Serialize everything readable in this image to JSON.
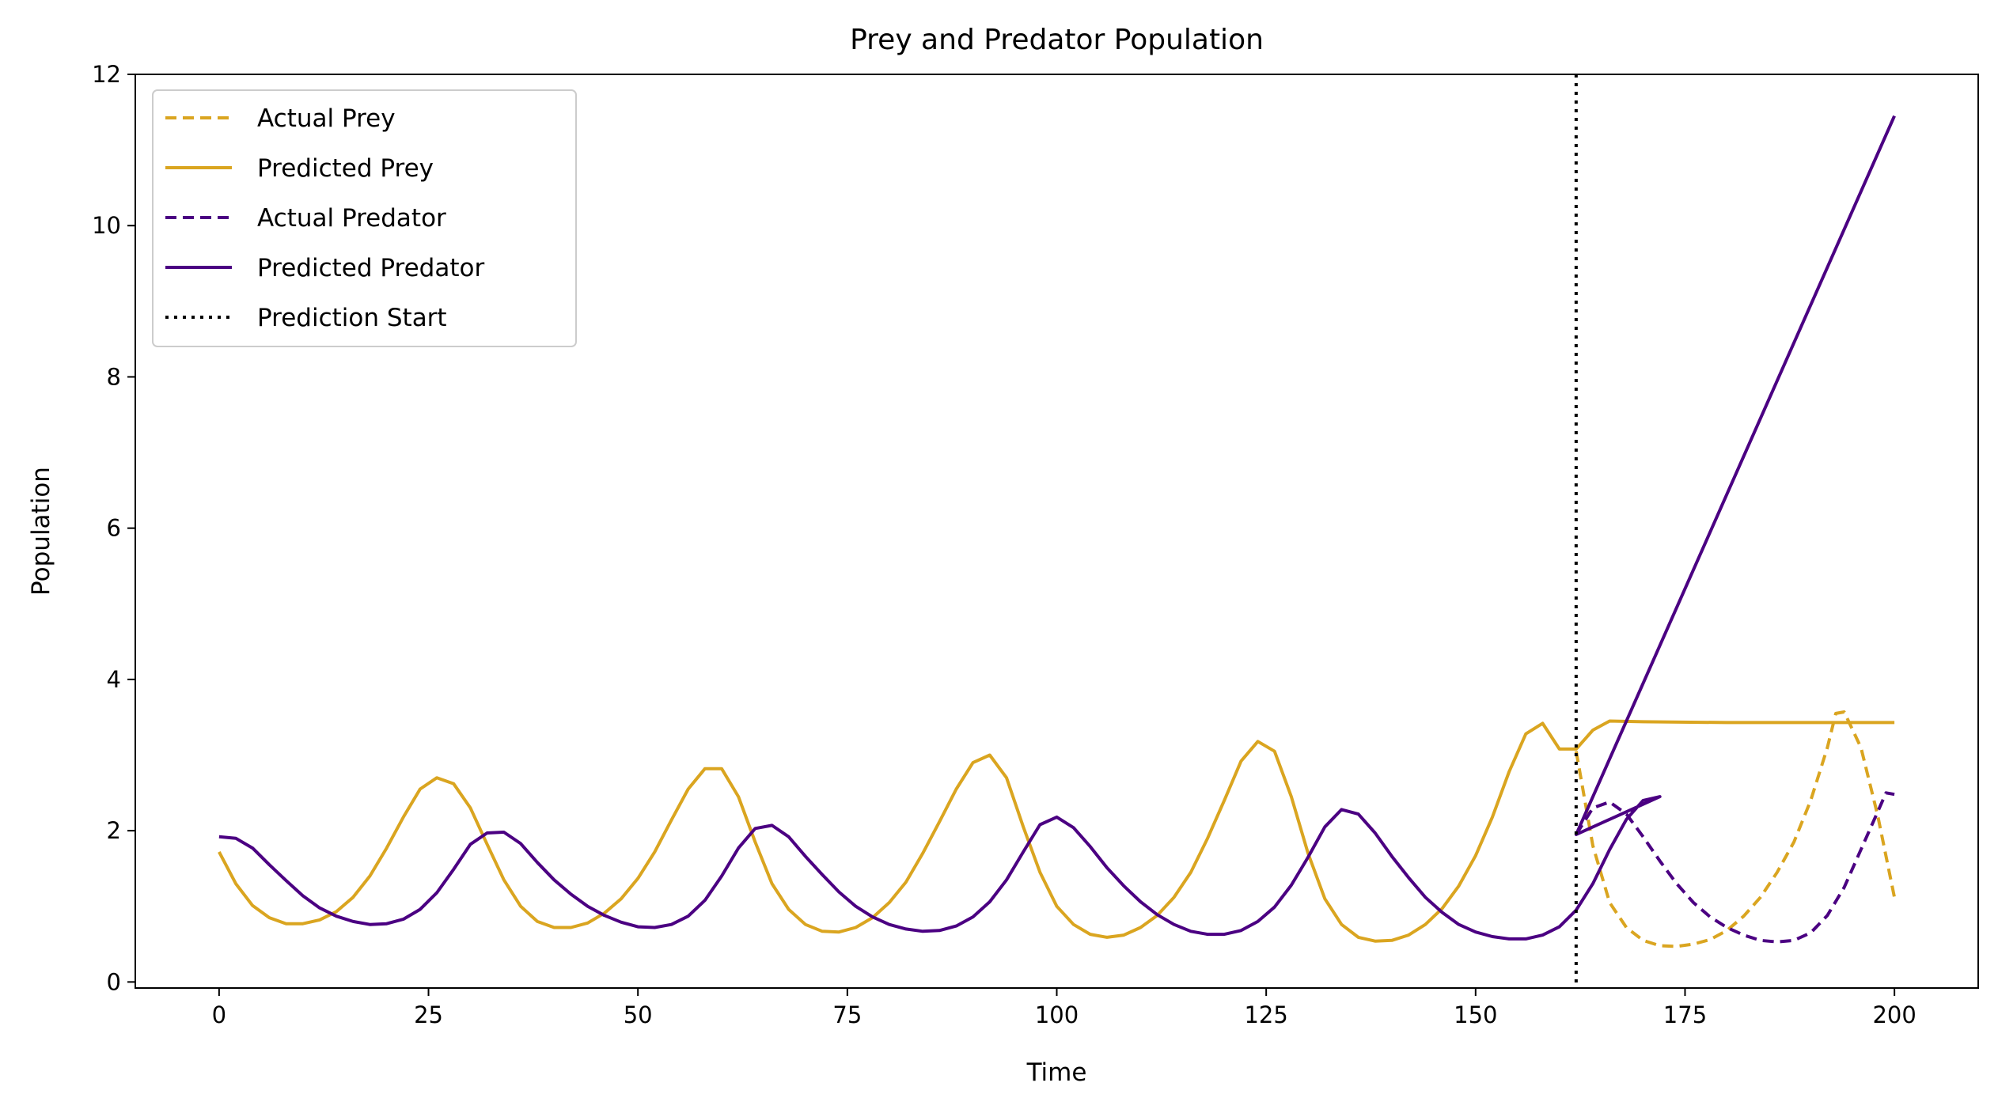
{
  "chart_data": {
    "type": "line",
    "title": "Prey and Predator Population",
    "xlabel": "Time",
    "ylabel": "Population",
    "xlim": [
      -10,
      210
    ],
    "ylim": [
      -0.08,
      12
    ],
    "xticks": [
      0,
      25,
      50,
      75,
      100,
      125,
      150,
      175,
      200
    ],
    "yticks": [
      0,
      2,
      4,
      6,
      8,
      10,
      12
    ],
    "grid": false,
    "legend_position": "top-left",
    "prediction_start": 162,
    "colors": {
      "prey": "#DAA520",
      "predator": "#4B0082",
      "prediction_start": "#000000"
    },
    "series": [
      {
        "name": "Actual Prey",
        "style": "dashed",
        "color": "#DAA520",
        "points": [
          [
            162,
            3.05
          ],
          [
            164,
            1.8
          ],
          [
            166,
            1.05
          ],
          [
            168,
            0.72
          ],
          [
            170,
            0.55
          ],
          [
            172,
            0.48
          ],
          [
            174,
            0.47
          ],
          [
            176,
            0.5
          ],
          [
            178,
            0.56
          ],
          [
            180,
            0.68
          ],
          [
            182,
            0.87
          ],
          [
            184,
            1.12
          ],
          [
            186,
            1.45
          ],
          [
            188,
            1.85
          ],
          [
            190,
            2.4
          ],
          [
            192,
            3.1
          ],
          [
            193,
            3.55
          ],
          [
            194,
            3.57
          ],
          [
            196,
            3.1
          ],
          [
            198,
            2.2
          ],
          [
            200,
            1.12
          ]
        ]
      },
      {
        "name": "Predicted Prey",
        "style": "solid",
        "color": "#DAA520",
        "points": [
          [
            0,
            1.72
          ],
          [
            2,
            1.3
          ],
          [
            4,
            1.01
          ],
          [
            6,
            0.85
          ],
          [
            8,
            0.77
          ],
          [
            10,
            0.77
          ],
          [
            12,
            0.82
          ],
          [
            14,
            0.93
          ],
          [
            16,
            1.12
          ],
          [
            18,
            1.4
          ],
          [
            20,
            1.77
          ],
          [
            22,
            2.18
          ],
          [
            24,
            2.55
          ],
          [
            26,
            2.7
          ],
          [
            28,
            2.62
          ],
          [
            30,
            2.3
          ],
          [
            32,
            1.82
          ],
          [
            34,
            1.35
          ],
          [
            36,
            1.0
          ],
          [
            38,
            0.8
          ],
          [
            40,
            0.72
          ],
          [
            42,
            0.72
          ],
          [
            44,
            0.78
          ],
          [
            46,
            0.91
          ],
          [
            48,
            1.1
          ],
          [
            50,
            1.37
          ],
          [
            52,
            1.72
          ],
          [
            54,
            2.14
          ],
          [
            56,
            2.55
          ],
          [
            58,
            2.82
          ],
          [
            60,
            2.82
          ],
          [
            62,
            2.45
          ],
          [
            64,
            1.85
          ],
          [
            66,
            1.3
          ],
          [
            68,
            0.96
          ],
          [
            70,
            0.76
          ],
          [
            72,
            0.67
          ],
          [
            74,
            0.66
          ],
          [
            76,
            0.72
          ],
          [
            78,
            0.85
          ],
          [
            80,
            1.05
          ],
          [
            82,
            1.32
          ],
          [
            84,
            1.7
          ],
          [
            86,
            2.12
          ],
          [
            88,
            2.55
          ],
          [
            90,
            2.9
          ],
          [
            92,
            3.0
          ],
          [
            94,
            2.7
          ],
          [
            96,
            2.05
          ],
          [
            98,
            1.45
          ],
          [
            100,
            1.0
          ],
          [
            102,
            0.76
          ],
          [
            104,
            0.63
          ],
          [
            106,
            0.59
          ],
          [
            108,
            0.62
          ],
          [
            110,
            0.72
          ],
          [
            112,
            0.88
          ],
          [
            114,
            1.12
          ],
          [
            116,
            1.45
          ],
          [
            118,
            1.9
          ],
          [
            120,
            2.4
          ],
          [
            122,
            2.92
          ],
          [
            124,
            3.18
          ],
          [
            126,
            3.05
          ],
          [
            128,
            2.45
          ],
          [
            130,
            1.7
          ],
          [
            132,
            1.1
          ],
          [
            134,
            0.76
          ],
          [
            136,
            0.59
          ],
          [
            138,
            0.54
          ],
          [
            140,
            0.55
          ],
          [
            142,
            0.62
          ],
          [
            144,
            0.76
          ],
          [
            146,
            0.97
          ],
          [
            148,
            1.27
          ],
          [
            150,
            1.67
          ],
          [
            152,
            2.18
          ],
          [
            154,
            2.78
          ],
          [
            156,
            3.28
          ],
          [
            158,
            3.42
          ],
          [
            160,
            3.08
          ],
          [
            162,
            3.08
          ],
          [
            164,
            3.33
          ],
          [
            166,
            3.45
          ],
          [
            170,
            3.44
          ],
          [
            180,
            3.43
          ],
          [
            190,
            3.43
          ],
          [
            200,
            3.43
          ]
        ]
      },
      {
        "name": "Actual Predator",
        "style": "dashed",
        "color": "#4B0082",
        "points": [
          [
            162,
            1.95
          ],
          [
            164,
            2.3
          ],
          [
            166,
            2.38
          ],
          [
            168,
            2.22
          ],
          [
            170,
            1.92
          ],
          [
            172,
            1.6
          ],
          [
            174,
            1.3
          ],
          [
            176,
            1.05
          ],
          [
            178,
            0.86
          ],
          [
            180,
            0.72
          ],
          [
            182,
            0.62
          ],
          [
            184,
            0.55
          ],
          [
            186,
            0.53
          ],
          [
            188,
            0.55
          ],
          [
            190,
            0.65
          ],
          [
            192,
            0.88
          ],
          [
            194,
            1.25
          ],
          [
            196,
            1.75
          ],
          [
            198,
            2.25
          ],
          [
            199,
            2.5
          ],
          [
            200,
            2.48
          ]
        ]
      },
      {
        "name": "Predicted Predator",
        "style": "solid",
        "color": "#4B0082",
        "points": [
          [
            0,
            1.92
          ],
          [
            2,
            1.9
          ],
          [
            4,
            1.77
          ],
          [
            6,
            1.55
          ],
          [
            8,
            1.34
          ],
          [
            10,
            1.14
          ],
          [
            12,
            0.98
          ],
          [
            14,
            0.87
          ],
          [
            16,
            0.8
          ],
          [
            18,
            0.76
          ],
          [
            20,
            0.77
          ],
          [
            22,
            0.83
          ],
          [
            24,
            0.96
          ],
          [
            26,
            1.18
          ],
          [
            28,
            1.49
          ],
          [
            30,
            1.82
          ],
          [
            32,
            1.97
          ],
          [
            34,
            1.98
          ],
          [
            36,
            1.83
          ],
          [
            38,
            1.58
          ],
          [
            40,
            1.35
          ],
          [
            42,
            1.16
          ],
          [
            44,
            1.0
          ],
          [
            46,
            0.88
          ],
          [
            48,
            0.79
          ],
          [
            50,
            0.73
          ],
          [
            52,
            0.72
          ],
          [
            54,
            0.76
          ],
          [
            56,
            0.87
          ],
          [
            58,
            1.08
          ],
          [
            60,
            1.4
          ],
          [
            62,
            1.77
          ],
          [
            64,
            2.03
          ],
          [
            66,
            2.07
          ],
          [
            68,
            1.92
          ],
          [
            70,
            1.66
          ],
          [
            72,
            1.42
          ],
          [
            74,
            1.19
          ],
          [
            76,
            1.0
          ],
          [
            78,
            0.86
          ],
          [
            80,
            0.76
          ],
          [
            82,
            0.7
          ],
          [
            84,
            0.67
          ],
          [
            86,
            0.68
          ],
          [
            88,
            0.74
          ],
          [
            90,
            0.86
          ],
          [
            92,
            1.06
          ],
          [
            94,
            1.35
          ],
          [
            96,
            1.72
          ],
          [
            98,
            2.08
          ],
          [
            100,
            2.18
          ],
          [
            102,
            2.04
          ],
          [
            104,
            1.79
          ],
          [
            106,
            1.51
          ],
          [
            108,
            1.27
          ],
          [
            110,
            1.06
          ],
          [
            112,
            0.89
          ],
          [
            114,
            0.76
          ],
          [
            116,
            0.67
          ],
          [
            118,
            0.63
          ],
          [
            120,
            0.63
          ],
          [
            122,
            0.68
          ],
          [
            124,
            0.8
          ],
          [
            126,
            0.99
          ],
          [
            128,
            1.28
          ],
          [
            130,
            1.65
          ],
          [
            132,
            2.05
          ],
          [
            134,
            2.28
          ],
          [
            136,
            2.22
          ],
          [
            138,
            1.97
          ],
          [
            140,
            1.66
          ],
          [
            142,
            1.38
          ],
          [
            144,
            1.12
          ],
          [
            146,
            0.92
          ],
          [
            148,
            0.76
          ],
          [
            150,
            0.66
          ],
          [
            152,
            0.6
          ],
          [
            154,
            0.57
          ],
          [
            156,
            0.57
          ],
          [
            158,
            0.62
          ],
          [
            160,
            0.73
          ],
          [
            162,
            0.95
          ],
          [
            164,
            1.3
          ],
          [
            166,
            1.75
          ],
          [
            168,
            2.15
          ],
          [
            170,
            2.4
          ],
          [
            172,
            2.45
          ],
          [
            162,
            1.95
          ],
          [
            200,
            11.45
          ]
        ]
      }
    ]
  }
}
